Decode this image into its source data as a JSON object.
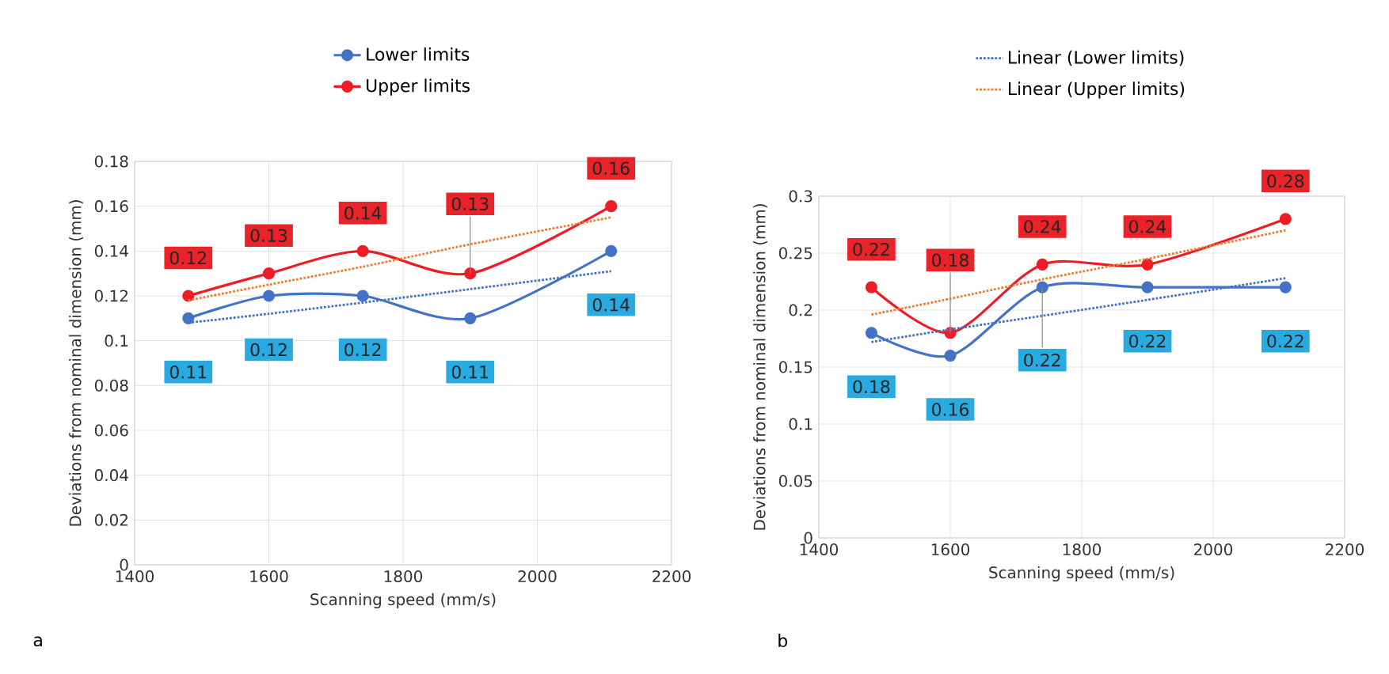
{
  "chart_data": [
    {
      "type": "line",
      "xlabel": "Scanning speed (mm/s)",
      "ylabel": "Deviations from nominal dimension (mm)",
      "annotations": [
        "a"
      ],
      "xlim": [
        1400,
        2200
      ],
      "xticks": [
        1400,
        1600,
        1800,
        2000,
        2200
      ],
      "ylim": [
        0,
        0.18
      ],
      "yticks": [
        0,
        0.02,
        0.04,
        0.06,
        0.08,
        0.1,
        0.12,
        0.14,
        0.16,
        0.18
      ],
      "grid": true,
      "legend": "top",
      "marker": "circle",
      "x": [
        1480,
        1600,
        1740,
        1900,
        2110
      ],
      "series": [
        {
          "name": "Lower limits",
          "color": "#4472c4",
          "values": [
            0.11,
            0.12,
            0.12,
            0.11,
            0.14
          ],
          "value_labels": [
            "0.11",
            "0.12",
            "0.12",
            "0.11",
            "0.14"
          ]
        },
        {
          "name": "Upper limits",
          "color": "#ee1c25",
          "values": [
            0.12,
            0.13,
            0.14,
            0.13,
            0.16
          ],
          "value_labels": [
            "0.12",
            "0.13",
            "0.14",
            "0.13",
            "0.16"
          ]
        },
        {
          "type": "line",
          "color": "#4472c4",
          "marker": "none",
          "line_style": "dotted",
          "values": [
            0.108,
            0.112,
            0.117,
            0.123,
            0.131
          ]
        },
        {
          "type": "line",
          "color": "#ed7d31",
          "marker": "none",
          "line_style": "dotted",
          "values": [
            0.118,
            0.125,
            0.133,
            0.143,
            0.155
          ]
        }
      ]
    },
    {
      "type": "line",
      "xlabel": "Scanning speed (mm/s)",
      "ylabel": "Deviations from nominal dimension (mm)",
      "annotations": [
        "b"
      ],
      "xlim": [
        1400,
        2200
      ],
      "xticks": [
        1400,
        1600,
        1800,
        2000,
        2200
      ],
      "ylim": [
        0,
        0.3
      ],
      "yticks": [
        0,
        0.05,
        0.1,
        0.15,
        0.2,
        0.25,
        0.3
      ],
      "grid": true,
      "legend": "top",
      "marker": "circle",
      "x": [
        1480,
        1600,
        1740,
        1900,
        2110
      ],
      "series": [
        {
          "color": "#4472c4",
          "values": [
            0.18,
            0.16,
            0.22,
            0.22,
            0.22
          ],
          "value_labels": [
            "0.18",
            "0.16",
            "0.22",
            "0.22",
            "0.22"
          ]
        },
        {
          "color": "#ee1c25",
          "values": [
            0.22,
            0.18,
            0.24,
            0.24,
            0.28
          ],
          "value_labels": [
            "0.22",
            "0.18",
            "0.24",
            "0.24",
            "0.28"
          ]
        },
        {
          "name": "Linear (Lower limits)",
          "type": "line",
          "color": "#4472c4",
          "marker": "none",
          "line_style": "dotted",
          "values": [
            0.172,
            0.183,
            0.195,
            0.209,
            0.228
          ]
        },
        {
          "name": "Linear (Upper limits)",
          "type": "line",
          "color": "#ed7d31",
          "marker": "none",
          "line_style": "dotted",
          "values": [
            0.196,
            0.21,
            0.227,
            0.245,
            0.27
          ]
        }
      ]
    }
  ]
}
